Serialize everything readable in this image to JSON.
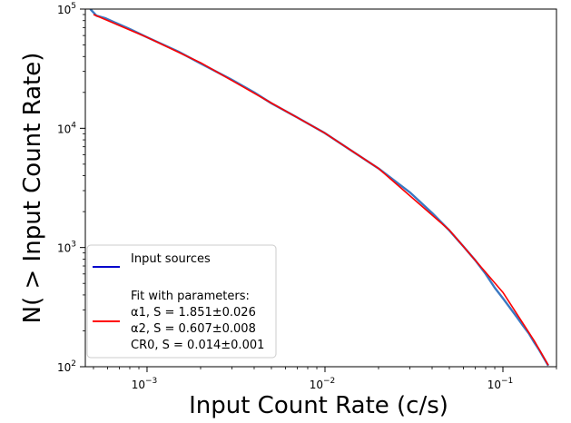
{
  "chart_data": {
    "type": "line",
    "xlabel": "Input Count Rate (c/s)",
    "ylabel": "N( > Input Count Rate)",
    "xscale": "log",
    "yscale": "log",
    "xlim": [
      0.00045,
      0.2
    ],
    "ylim": [
      100,
      100000
    ],
    "x_ticks": [
      {
        "value": 0.001,
        "base": "10",
        "exp": "−3"
      },
      {
        "value": 0.01,
        "base": "10",
        "exp": "−2"
      },
      {
        "value": 0.1,
        "base": "10",
        "exp": "−1"
      }
    ],
    "y_ticks": [
      {
        "value": 100,
        "base": "10",
        "exp": "2"
      },
      {
        "value": 1000,
        "base": "10",
        "exp": "3"
      },
      {
        "value": 10000,
        "base": "10",
        "exp": "4"
      },
      {
        "value": 100000,
        "base": "10",
        "exp": "5"
      }
    ],
    "legend": {
      "position": "lower-left",
      "entries": [
        {
          "lines": [
            "Input sources"
          ],
          "color": "#0000cc"
        },
        {
          "lines": [
            "Fit with parameters:",
            "α1, S = 1.851±0.026",
            "α2, S = 0.607±0.008",
            "CR0, S = 0.014±0.001"
          ],
          "color": "#ff0000"
        }
      ]
    },
    "series": [
      {
        "name": "Input sources",
        "color": "#3a78c2",
        "x": [
          0.00048,
          0.00052,
          0.00058,
          0.00065,
          0.0008,
          0.001,
          0.0015,
          0.002,
          0.003,
          0.004,
          0.005,
          0.007,
          0.01,
          0.015,
          0.02,
          0.03,
          0.04,
          0.05,
          0.06,
          0.07,
          0.08,
          0.09,
          0.1,
          0.11,
          0.12,
          0.13,
          0.14,
          0.15,
          0.16,
          0.17,
          0.18
        ],
        "y": [
          100000,
          88000,
          84000,
          78000,
          68000,
          58000,
          44000,
          35000,
          25500,
          20000,
          16200,
          12300,
          9100,
          6100,
          4600,
          2900,
          1950,
          1390,
          1020,
          780,
          600,
          460,
          375,
          310,
          260,
          220,
          190,
          160,
          138,
          118,
          102
        ]
      },
      {
        "name": "Fit",
        "color": "#ff0000",
        "x": [
          0.0005,
          0.001,
          0.002,
          0.005,
          0.01,
          0.02,
          0.05,
          0.1,
          0.15,
          0.18
        ],
        "y": [
          90000,
          58000,
          35500,
          16300,
          9100,
          4600,
          1400,
          420,
          165,
          103
        ]
      }
    ]
  }
}
